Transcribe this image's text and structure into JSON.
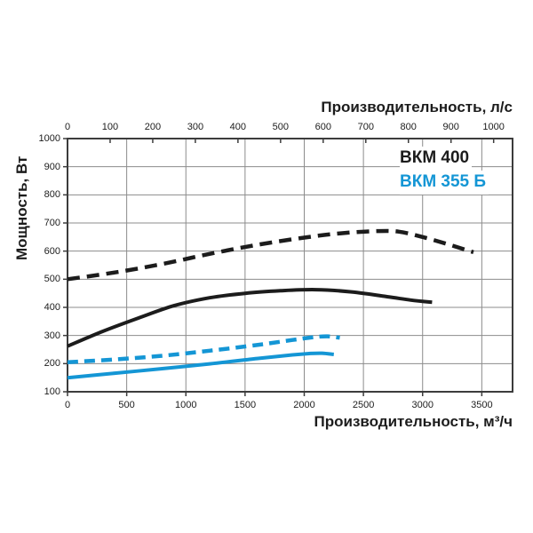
{
  "chart_data": {
    "type": "line",
    "title": "",
    "grid": true,
    "legend_position": "top-right-inside",
    "x_axis_top": {
      "label": "Производительность, л/с",
      "unit": "л/с",
      "ticks": [
        0,
        100,
        200,
        300,
        400,
        500,
        600,
        700,
        800,
        900,
        1000
      ],
      "scale_to_bottom_axis": 3.6
    },
    "x_axis_bottom": {
      "label": "Производительность, м³/ч",
      "unit": "м³/ч",
      "ticks": [
        0,
        500,
        1000,
        1500,
        2000,
        2500,
        3000,
        3500
      ],
      "min": 0,
      "max": 3760
    },
    "y_axis": {
      "label": "Мощность, Вт",
      "unit": "Вт",
      "ticks": [
        100,
        200,
        300,
        400,
        500,
        600,
        700,
        800,
        900,
        1000
      ],
      "min": 100,
      "max": 1000
    },
    "legend": [
      {
        "label": "ВКМ 400",
        "color": "#1c1c1c"
      },
      {
        "label": "ВКМ 355 Б",
        "color": "#1496d5"
      }
    ],
    "series": [
      {
        "name": "ВКМ 400 (пунктир)",
        "model": "ВКМ 400",
        "color": "#1c1c1c",
        "style": "dashed",
        "points": [
          [
            0,
            500
          ],
          [
            400,
            524
          ],
          [
            800,
            554
          ],
          [
            1200,
            590
          ],
          [
            1600,
            622
          ],
          [
            2000,
            648
          ],
          [
            2300,
            663
          ],
          [
            2600,
            671
          ],
          [
            2800,
            669
          ],
          [
            3000,
            650
          ],
          [
            3200,
            626
          ],
          [
            3430,
            596
          ]
        ]
      },
      {
        "name": "ВКМ 400 (сплошная)",
        "model": "ВКМ 400",
        "color": "#1c1c1c",
        "style": "solid",
        "points": [
          [
            0,
            262
          ],
          [
            300,
            315
          ],
          [
            600,
            362
          ],
          [
            900,
            406
          ],
          [
            1200,
            434
          ],
          [
            1500,
            450
          ],
          [
            1800,
            459
          ],
          [
            2100,
            463
          ],
          [
            2400,
            455
          ],
          [
            2700,
            438
          ],
          [
            2900,
            426
          ],
          [
            3080,
            418
          ]
        ]
      },
      {
        "name": "ВКМ 355 Б (пунктир)",
        "model": "ВКМ 355 Б",
        "color": "#1496d5",
        "style": "dashed",
        "points": [
          [
            0,
            205
          ],
          [
            400,
            215
          ],
          [
            800,
            228
          ],
          [
            1200,
            246
          ],
          [
            1600,
            266
          ],
          [
            1900,
            284
          ],
          [
            2100,
            295
          ],
          [
            2200,
            297
          ],
          [
            2300,
            292
          ]
        ]
      },
      {
        "name": "ВКМ 355 Б (сплошная)",
        "model": "ВКМ 355 Б",
        "color": "#1496d5",
        "style": "solid",
        "points": [
          [
            0,
            150
          ],
          [
            400,
            166
          ],
          [
            800,
            182
          ],
          [
            1200,
            199
          ],
          [
            1600,
            218
          ],
          [
            1900,
            231
          ],
          [
            2050,
            236
          ],
          [
            2150,
            237
          ],
          [
            2250,
            233
          ]
        ]
      }
    ]
  },
  "colors": {
    "grid": "#8c8c8c",
    "border": "#3c3c3c",
    "background": "#ffffff"
  }
}
